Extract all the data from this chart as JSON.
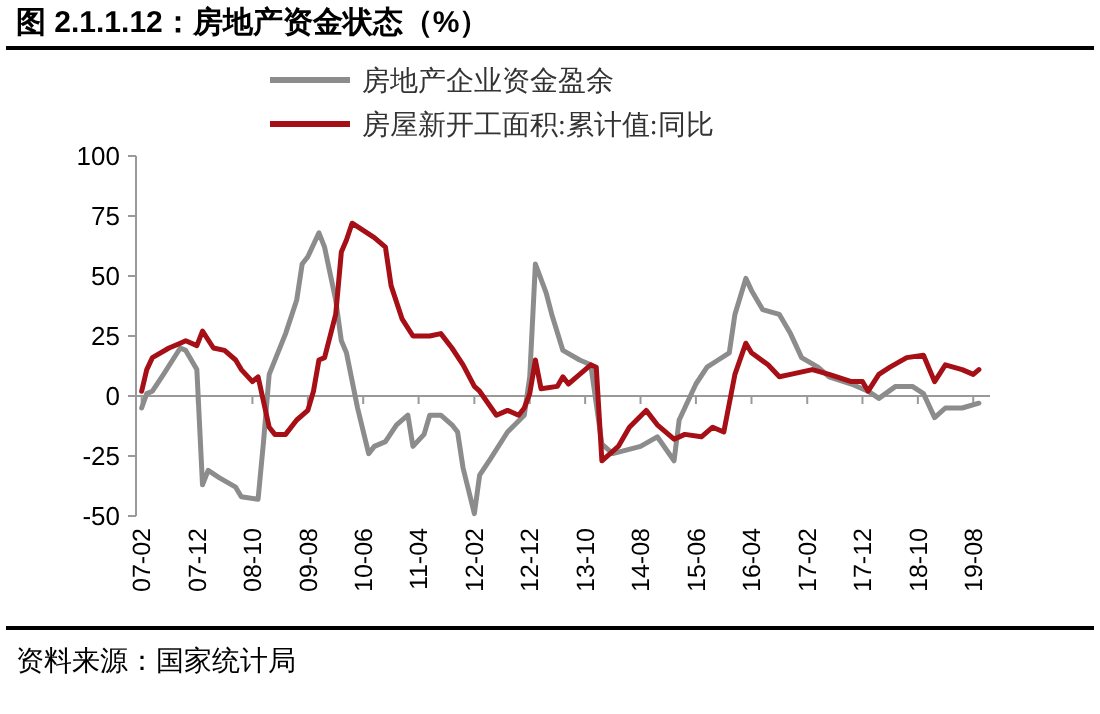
{
  "chart_data": {
    "type": "line",
    "title": "图 2.1.1.12：房地产资金状态（%）",
    "annotations": [
      "资料来源：国家统计局"
    ],
    "xlim": [
      "2007-01",
      "2019-11"
    ],
    "xticks": [
      {
        "value": "2007-02",
        "label": "07-02"
      },
      {
        "value": "2007-12",
        "label": "07-12"
      },
      {
        "value": "2008-10",
        "label": "08-10"
      },
      {
        "value": "2009-08",
        "label": "09-08"
      },
      {
        "value": "2010-06",
        "label": "10-06"
      },
      {
        "value": "2011-04",
        "label": "11-04"
      },
      {
        "value": "2012-02",
        "label": "12-02"
      },
      {
        "value": "2012-12",
        "label": "12-12"
      },
      {
        "value": "2013-10",
        "label": "13-10"
      },
      {
        "value": "2014-08",
        "label": "14-08"
      },
      {
        "value": "2015-06",
        "label": "15-06"
      },
      {
        "value": "2016-04",
        "label": "16-04"
      },
      {
        "value": "2017-02",
        "label": "17-02"
      },
      {
        "value": "2017-12",
        "label": "17-12"
      },
      {
        "value": "2018-10",
        "label": "18-10"
      },
      {
        "value": "2019-08",
        "label": "19-08"
      }
    ],
    "ylim": [
      -50,
      100
    ],
    "yticks": [
      -50,
      -25,
      0,
      25,
      50,
      75,
      100
    ],
    "legend": "top",
    "marker": "none",
    "line_style": "solid",
    "series": [
      {
        "name": "房地产企业资金盈余",
        "color": "#8c8c8c",
        "x": [
          "2007-02",
          "2007-03",
          "2007-04",
          "2007-06",
          "2007-09",
          "2007-10",
          "2007-12",
          "2008-01",
          "2008-02",
          "2008-04",
          "2008-07",
          "2008-08",
          "2008-11",
          "2008-12",
          "2009-01",
          "2009-04",
          "2009-06",
          "2009-07",
          "2009-08",
          "2009-10",
          "2009-11",
          "2010-01",
          "2010-02",
          "2010-03",
          "2010-05",
          "2010-07",
          "2010-08",
          "2010-10",
          "2010-12",
          "2011-02",
          "2011-03",
          "2011-05",
          "2011-06",
          "2011-08",
          "2011-10",
          "2011-11",
          "2011-12",
          "2012-02",
          "2012-03",
          "2012-05",
          "2012-08",
          "2012-11",
          "2012-12",
          "2013-01",
          "2013-03",
          "2013-04",
          "2013-06",
          "2013-09",
          "2013-11",
          "2014-01",
          "2014-03",
          "2014-08",
          "2014-11",
          "2015-02",
          "2015-03",
          "2015-06",
          "2015-08",
          "2015-10",
          "2015-12",
          "2016-01",
          "2016-03",
          "2016-04",
          "2016-06",
          "2016-09",
          "2016-11",
          "2017-01",
          "2017-04",
          "2017-06",
          "2017-10",
          "2018-01",
          "2018-03",
          "2018-06",
          "2018-09",
          "2018-11",
          "2019-01",
          "2019-03",
          "2019-06",
          "2019-09"
        ],
        "values": [
          -5,
          1,
          2,
          9,
          20,
          19,
          11,
          -37,
          -31,
          -34,
          -38,
          -42,
          -43,
          -19,
          9,
          26,
          40,
          55,
          58,
          68,
          62,
          40,
          23,
          18,
          -5,
          -24,
          -21,
          -19,
          -12,
          -8,
          -21,
          -16,
          -8,
          -8,
          -12,
          -15,
          -30,
          -49,
          -33,
          -26,
          -15,
          -8,
          8,
          55,
          43,
          34,
          19,
          15,
          13,
          -20,
          -24,
          -21,
          -17,
          -27,
          -10,
          5,
          12,
          15,
          18,
          34,
          49,
          44,
          36,
          34,
          26,
          16,
          12,
          8,
          5,
          2,
          -1,
          4,
          4,
          1,
          -9,
          -5,
          -5,
          -3
        ]
      },
      {
        "name": "房屋新开工面积:累计值:同比",
        "color": "#a50f15",
        "x": [
          "2007-02",
          "2007-03",
          "2007-04",
          "2007-07",
          "2007-09",
          "2007-10",
          "2007-12",
          "2008-01",
          "2008-03",
          "2008-05",
          "2008-07",
          "2008-08",
          "2008-10",
          "2008-11",
          "2009-01",
          "2009-02",
          "2009-04",
          "2009-06",
          "2009-08",
          "2009-09",
          "2009-10",
          "2009-11",
          "2010-01",
          "2010-02",
          "2010-03",
          "2010-04",
          "2010-06",
          "2010-08",
          "2010-10",
          "2010-11",
          "2011-01",
          "2011-03",
          "2011-06",
          "2011-08",
          "2011-10",
          "2011-12",
          "2012-02",
          "2012-03",
          "2012-06",
          "2012-08",
          "2012-10",
          "2012-11",
          "2012-12",
          "2013-01",
          "2013-02",
          "2013-05",
          "2013-06",
          "2013-07",
          "2013-09",
          "2013-11",
          "2013-12",
          "2014-01",
          "2014-04",
          "2014-06",
          "2014-09",
          "2014-11",
          "2015-02",
          "2015-04",
          "2015-07",
          "2015-09",
          "2015-11",
          "2016-01",
          "2016-03",
          "2016-04",
          "2016-07",
          "2016-09",
          "2016-11",
          "2017-03",
          "2017-06",
          "2017-10",
          "2017-12",
          "2018-01",
          "2018-03",
          "2018-05",
          "2018-08",
          "2018-11",
          "2019-01",
          "2019-03",
          "2019-06",
          "2019-08",
          "2019-09"
        ],
        "values": [
          2,
          11,
          16,
          20,
          22,
          23,
          21,
          27,
          20,
          19,
          15,
          11,
          6,
          8,
          -13,
          -16,
          -16,
          -10,
          -6,
          2,
          15,
          16,
          34,
          60,
          65,
          72,
          69,
          66,
          62,
          46,
          32,
          25,
          25,
          26,
          20,
          13,
          4,
          2,
          -8,
          -6,
          -8,
          -5,
          1,
          15,
          3,
          4,
          8,
          5,
          9,
          13,
          12,
          -27,
          -21,
          -13,
          -6,
          -12,
          -18,
          -16,
          -17,
          -13,
          -15,
          9,
          22,
          18,
          13,
          8,
          9,
          11,
          9,
          6,
          6,
          2,
          9,
          12,
          16,
          17,
          6,
          13,
          11,
          9,
          11
        ]
      }
    ]
  }
}
